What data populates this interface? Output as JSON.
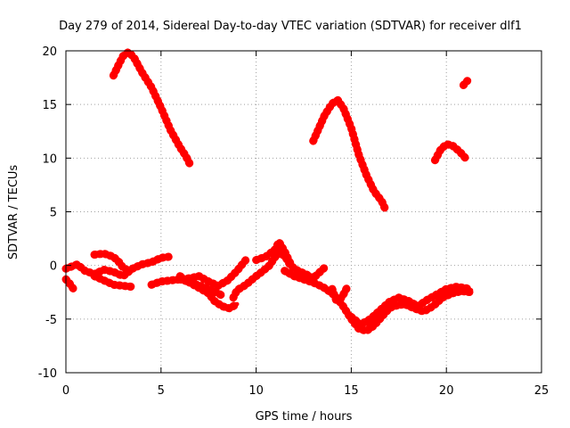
{
  "chart_data": {
    "type": "scatter",
    "title": "Day 279 of 2014, Sidereal Day-to-day VTEC variation (SDTVAR) for receiver dlf1",
    "xlabel": "GPS time / hours",
    "ylabel": "SDTVAR / TECUs",
    "xlim": [
      0,
      25
    ],
    "ylim": [
      -10,
      20
    ],
    "xticks": [
      0,
      5,
      10,
      15,
      20,
      25
    ],
    "yticks": [
      -10,
      -5,
      0,
      5,
      10,
      15,
      20
    ],
    "grid": true,
    "color": "#ff0000",
    "series": [
      {
        "name": "arc-1",
        "x": [
          2.5,
          2.8,
          3.0,
          3.3,
          3.6,
          4.0,
          4.5,
          5.0,
          5.5,
          6.0,
          6.3,
          6.5
        ],
        "y": [
          17.7,
          18.8,
          19.5,
          19.9,
          19.3,
          18.0,
          16.6,
          14.7,
          12.6,
          11.0,
          10.2,
          9.5
        ]
      },
      {
        "name": "arc-2",
        "x": [
          13.0,
          13.3,
          13.6,
          14.0,
          14.3,
          14.6,
          15.0,
          15.4,
          15.8,
          16.2,
          16.6,
          16.8
        ],
        "y": [
          11.6,
          12.8,
          14.0,
          15.1,
          15.4,
          14.6,
          12.8,
          10.3,
          8.4,
          6.9,
          6.0,
          5.2
        ]
      },
      {
        "name": "arc-3",
        "x": [
          19.4,
          19.7,
          20.0,
          20.3,
          20.7,
          21.0
        ],
        "y": [
          9.8,
          10.8,
          11.3,
          11.2,
          10.6,
          10.0
        ]
      },
      {
        "name": "arc-4",
        "x": [
          20.9,
          21.1
        ],
        "y": [
          16.8,
          17.2
        ]
      },
      {
        "name": "low-trace-1",
        "x": [
          0.0,
          0.3,
          0.6,
          1.0,
          1.5,
          2.0,
          2.5,
          3.0,
          3.5,
          4.0,
          4.5,
          5.0,
          5.4
        ],
        "y": [
          -0.3,
          -0.1,
          0.1,
          -0.5,
          -0.8,
          -0.4,
          -0.6,
          -1.0,
          -0.3,
          0.1,
          0.3,
          0.7,
          0.8
        ]
      },
      {
        "name": "low-trace-2",
        "x": [
          0.0,
          0.2,
          0.4
        ],
        "y": [
          -1.3,
          -1.7,
          -2.2
        ]
      },
      {
        "name": "low-trace-3",
        "x": [
          1.5,
          2.0,
          2.5,
          3.0,
          3.5
        ],
        "y": [
          -1.0,
          -1.4,
          -1.8,
          -1.9,
          -2.0
        ]
      },
      {
        "name": "low-trace-4",
        "x": [
          1.5,
          2.0,
          2.5,
          2.8,
          3.0,
          3.3
        ],
        "y": [
          1.0,
          1.1,
          0.8,
          0.3,
          -0.2,
          -0.5
        ]
      },
      {
        "name": "low-trace-5",
        "x": [
          4.5,
          5.0,
          5.5,
          6.0,
          6.5,
          7.0,
          7.5,
          8.0,
          8.5,
          9.0,
          9.5
        ],
        "y": [
          -1.8,
          -1.5,
          -1.4,
          -1.3,
          -1.2,
          -1.0,
          -1.5,
          -1.9,
          -1.4,
          -0.5,
          0.6
        ]
      },
      {
        "name": "low-trace-6",
        "x": [
          6.0,
          6.5,
          7.0,
          7.5,
          7.8,
          8.2,
          8.6,
          9.0
        ],
        "y": [
          -1.0,
          -1.6,
          -2.1,
          -2.6,
          -3.3,
          -3.8,
          -4.0,
          -3.6
        ]
      },
      {
        "name": "low-trace-7",
        "x": [
          6.0,
          6.6,
          7.2,
          7.8,
          8.2
        ],
        "y": [
          -1.3,
          -1.6,
          -2.0,
          -2.4,
          -2.8
        ]
      },
      {
        "name": "low-trace-8",
        "x": [
          8.8,
          9.0,
          9.3,
          9.6,
          10.0,
          10.3,
          10.7,
          11.0,
          11.3,
          11.6,
          11.8,
          12.2,
          12.6,
          13.0,
          13.3,
          13.6
        ],
        "y": [
          -3.0,
          -2.3,
          -2.0,
          -1.6,
          -1.0,
          -0.6,
          0.0,
          0.8,
          1.2,
          0.6,
          0.0,
          -0.5,
          -0.8,
          -1.2,
          -0.7,
          -0.2
        ]
      },
      {
        "name": "low-trace-9",
        "x": [
          10.0,
          10.5,
          11.0,
          11.2,
          11.5,
          11.8
        ],
        "y": [
          0.5,
          0.8,
          1.5,
          2.2,
          1.3,
          0.2
        ]
      },
      {
        "name": "low-trace-10",
        "x": [
          11.5,
          12.0,
          12.5,
          13.0,
          13.5,
          14.0,
          14.5,
          15.0,
          15.4,
          15.8,
          16.2,
          16.6,
          17.0
        ],
        "y": [
          -0.5,
          -1.0,
          -1.3,
          -1.6,
          -2.0,
          -2.6,
          -3.6,
          -5.0,
          -5.9,
          -6.1,
          -5.6,
          -4.8,
          -4.0
        ]
      },
      {
        "name": "low-trace-11",
        "x": [
          14.0,
          14.2,
          14.5,
          14.8
        ],
        "y": [
          -2.2,
          -3.2,
          -3.0,
          -2.0
        ]
      },
      {
        "name": "low-trace-12",
        "x": [
          15.0,
          15.5,
          16.0,
          16.5,
          17.0,
          17.5,
          18.0,
          18.5,
          19.0,
          19.5,
          20.0,
          20.5,
          21.0,
          21.3
        ],
        "y": [
          -4.8,
          -5.5,
          -5.0,
          -4.2,
          -3.4,
          -3.0,
          -3.3,
          -3.8,
          -3.2,
          -2.7,
          -2.2,
          -2.0,
          -2.1,
          -2.3
        ]
      },
      {
        "name": "low-trace-13",
        "x": [
          16.0,
          16.6,
          17.2,
          17.8,
          18.3,
          18.8,
          19.3,
          19.8,
          20.3,
          20.8,
          21.3
        ],
        "y": [
          -5.5,
          -4.5,
          -3.8,
          -3.6,
          -4.0,
          -4.3,
          -3.8,
          -3.0,
          -2.6,
          -2.4,
          -2.5
        ]
      }
    ]
  }
}
